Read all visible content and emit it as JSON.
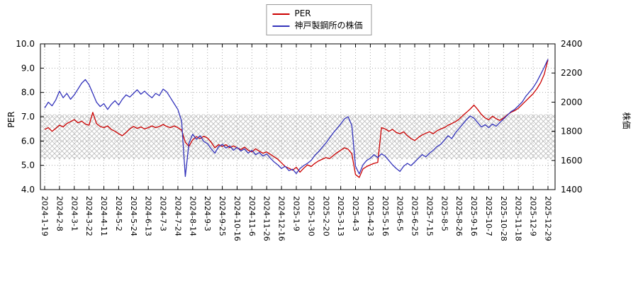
{
  "page": {
    "background": "#ffffff"
  },
  "chart_data": {
    "type": "line",
    "title": "",
    "ylabel_left": "PER",
    "ylabel_right": "株価",
    "grid": "dotted",
    "legend_position": "top-center",
    "y_left": {
      "min": 4.0,
      "max": 10.0,
      "ticks": [
        "4.0",
        "5.0",
        "6.0",
        "7.0",
        "8.0",
        "9.0",
        "10.0"
      ]
    },
    "y_right": {
      "min": 1400,
      "max": 2400,
      "ticks": [
        "1400",
        "1600",
        "1800",
        "2000",
        "2200",
        "2400"
      ]
    },
    "band": {
      "axis": "left",
      "from": 5.25,
      "to": 7.1,
      "style": "crosshatch",
      "color": "#bbbbbb"
    },
    "x_labels": [
      "2024-1-19",
      "2024-2-8",
      "2024-3-1",
      "2024-3-22",
      "2024-4-11",
      "2024-5-2",
      "2024-5-24",
      "2024-6-13",
      "2024-7-3",
      "2024-7-24",
      "2024-8-14",
      "2024-9-3",
      "2024-9-25",
      "2024-10-16",
      "2024-11-6",
      "2024-11-26",
      "2024-12-16",
      "2025-1-9",
      "2025-1-30",
      "2025-2-20",
      "2025-3-13",
      "2025-4-3",
      "2025-4-23",
      "2025-5-16",
      "2025-6-5",
      "2025-6-25",
      "2025-7-15",
      "2025-8-5",
      "2025-8-26",
      "2025-9-16",
      "2025-10-7",
      "2025-10-28",
      "2025-11-18",
      "2025-12-9",
      "2025-12-29"
    ],
    "series": [
      {
        "name": "PER",
        "axis": "left",
        "color": "#cc0000",
        "values": [
          6.48,
          6.55,
          6.4,
          6.52,
          6.65,
          6.58,
          6.72,
          6.8,
          6.88,
          6.75,
          6.82,
          6.7,
          6.65,
          7.18,
          6.72,
          6.6,
          6.55,
          6.62,
          6.48,
          6.4,
          6.3,
          6.22,
          6.35,
          6.5,
          6.6,
          6.52,
          6.58,
          6.5,
          6.55,
          6.62,
          6.55,
          6.6,
          6.68,
          6.6,
          6.55,
          6.62,
          6.55,
          6.45,
          5.95,
          5.78,
          6.05,
          6.18,
          6.1,
          6.2,
          6.12,
          5.95,
          5.72,
          5.85,
          5.78,
          5.85,
          5.72,
          5.8,
          5.72,
          5.65,
          5.75,
          5.62,
          5.55,
          5.68,
          5.58,
          5.5,
          5.55,
          5.45,
          5.35,
          5.25,
          5.1,
          4.95,
          4.88,
          4.8,
          4.92,
          4.72,
          4.88,
          5.02,
          4.95,
          5.08,
          5.18,
          5.25,
          5.32,
          5.28,
          5.4,
          5.52,
          5.62,
          5.72,
          5.66,
          5.48,
          4.62,
          4.5,
          4.85,
          4.95,
          5.02,
          5.08,
          5.12,
          6.55,
          6.5,
          6.4,
          6.48,
          6.35,
          6.3,
          6.38,
          6.22,
          6.1,
          6.02,
          6.15,
          6.25,
          6.32,
          6.38,
          6.3,
          6.42,
          6.5,
          6.55,
          6.65,
          6.72,
          6.8,
          6.9,
          7.05,
          7.18,
          7.32,
          7.48,
          7.3,
          7.1,
          6.95,
          6.88,
          7.02,
          6.92,
          6.85,
          6.95,
          7.08,
          7.18,
          7.25,
          7.35,
          7.5,
          7.65,
          7.8,
          7.95,
          8.15,
          8.4,
          8.75,
          9.35
        ]
      },
      {
        "name": "神戸製鋼所の株価",
        "axis": "right",
        "color": "#3333bb",
        "values": [
          1960,
          2000,
          1975,
          2015,
          2075,
          2030,
          2060,
          2020,
          2050,
          2090,
          2130,
          2155,
          2120,
          2060,
          2000,
          1970,
          1990,
          1950,
          1985,
          2010,
          1980,
          2020,
          2050,
          2035,
          2060,
          2085,
          2055,
          2075,
          2050,
          2030,
          2060,
          2045,
          2090,
          2070,
          2030,
          1990,
          1950,
          1870,
          1490,
          1720,
          1780,
          1745,
          1770,
          1730,
          1715,
          1680,
          1650,
          1695,
          1710,
          1685,
          1700,
          1670,
          1690,
          1665,
          1680,
          1650,
          1670,
          1640,
          1655,
          1630,
          1645,
          1615,
          1590,
          1570,
          1545,
          1560,
          1530,
          1540,
          1510,
          1545,
          1565,
          1580,
          1600,
          1635,
          1660,
          1690,
          1720,
          1755,
          1790,
          1820,
          1850,
          1885,
          1900,
          1840,
          1560,
          1508,
          1570,
          1600,
          1615,
          1640,
          1620,
          1645,
          1630,
          1600,
          1570,
          1545,
          1525,
          1560,
          1580,
          1565,
          1590,
          1615,
          1640,
          1625,
          1650,
          1670,
          1695,
          1710,
          1740,
          1770,
          1750,
          1790,
          1820,
          1850,
          1880,
          1905,
          1890,
          1860,
          1830,
          1845,
          1825,
          1850,
          1835,
          1860,
          1885,
          1910,
          1935,
          1950,
          1975,
          2000,
          2040,
          2070,
          2100,
          2140,
          2190,
          2240,
          2295
        ]
      }
    ]
  }
}
